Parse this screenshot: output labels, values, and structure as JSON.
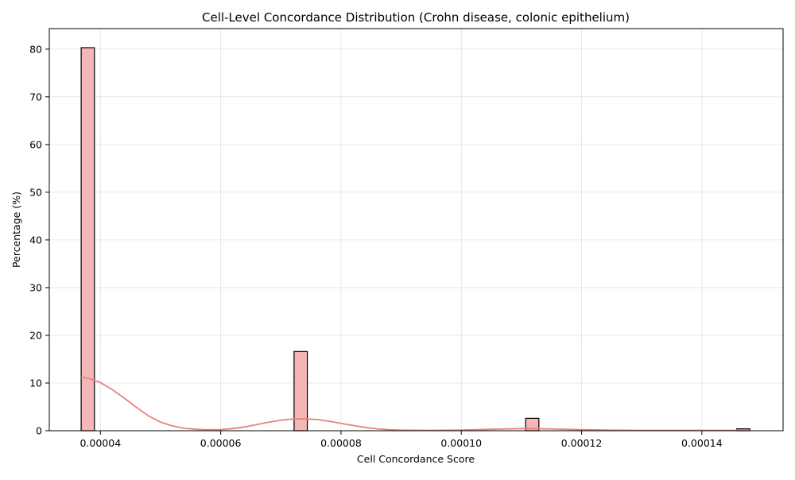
{
  "chart_data": {
    "type": "bar",
    "title": "Cell-Level Concordance Distribution (Crohn disease, colonic epithelium)",
    "xlabel": "Cell Concordance Score",
    "ylabel": "Percentage (%)",
    "xlim": [
      3.15e-05,
      0.0001535
    ],
    "ylim": [
      0,
      84.3
    ],
    "x_ticks": [
      {
        "value": 4e-05,
        "label": "0.00004"
      },
      {
        "value": 6e-05,
        "label": "0.00006"
      },
      {
        "value": 8e-05,
        "label": "0.00008"
      },
      {
        "value": 0.0001,
        "label": "0.00010"
      },
      {
        "value": 0.00012,
        "label": "0.00012"
      },
      {
        "value": 0.00014,
        "label": "0.00014"
      }
    ],
    "y_ticks": [
      0,
      10,
      20,
      30,
      40,
      50,
      60,
      70,
      80
    ],
    "bins": [
      {
        "x0": 3.68e-05,
        "x1": 3.9e-05,
        "value": 80.3
      },
      {
        "x0": 7.22e-05,
        "x1": 7.44e-05,
        "value": 16.6
      },
      {
        "x0": 0.0001107,
        "x1": 0.0001129,
        "value": 2.6
      },
      {
        "x0": 0.0001458,
        "x1": 0.000148,
        "value": 0.4
      }
    ],
    "kde": {
      "x": [
        3.68e-05,
        3.8e-05,
        4e-05,
        4.2e-05,
        4.4e-05,
        4.6e-05,
        4.8e-05,
        5e-05,
        5.2e-05,
        5.4e-05,
        5.6e-05,
        5.8e-05,
        6e-05,
        6.2e-05,
        6.4e-05,
        6.6e-05,
        6.8e-05,
        7e-05,
        7.2e-05,
        7.4e-05,
        7.6e-05,
        7.8e-05,
        8e-05,
        8.2e-05,
        8.4e-05,
        8.6e-05,
        8.8e-05,
        9e-05,
        9.5e-05,
        0.0001,
        0.000105,
        0.00011,
        0.000112,
        0.000115,
        0.00012,
        0.000125,
        0.00013,
        0.000135,
        0.00014,
        0.000145,
        0.000148
      ],
      "y": [
        11.2,
        11.0,
        10.1,
        8.6,
        6.8,
        4.9,
        3.1,
        1.8,
        1.0,
        0.5,
        0.3,
        0.2,
        0.25,
        0.45,
        0.8,
        1.3,
        1.8,
        2.2,
        2.45,
        2.5,
        2.35,
        2.0,
        1.55,
        1.1,
        0.7,
        0.4,
        0.22,
        0.12,
        0.07,
        0.15,
        0.3,
        0.45,
        0.45,
        0.38,
        0.22,
        0.12,
        0.08,
        0.07,
        0.07,
        0.08,
        0.1
      ]
    },
    "grid": true,
    "colors": {
      "bar_fill": "#f4b6b6",
      "bar_edge": "#000000",
      "kde_line": "#e88080"
    }
  }
}
